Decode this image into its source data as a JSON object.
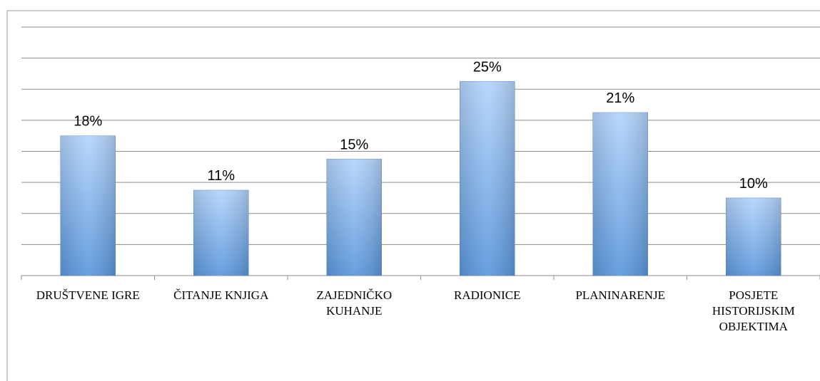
{
  "chart_data": {
    "type": "bar",
    "categories": [
      "DRUŠTVENE IGRE",
      "ČITANJE KNJIGA",
      "ZAJEDNIČKO KUHANJE",
      "RADIONICE",
      "PLANINARENJE",
      "POSJETE HISTORIJSKIM OBJEKTIMA"
    ],
    "values": [
      18,
      11,
      15,
      25,
      21,
      10
    ],
    "value_labels": [
      "18%",
      "11%",
      "15%",
      "25%",
      "21%",
      "10%"
    ],
    "color": "#6fa6e6",
    "ylim": [
      0,
      32
    ],
    "yticks": [
      0,
      4,
      8,
      12,
      16,
      20,
      24,
      28,
      32
    ],
    "grid": true
  }
}
